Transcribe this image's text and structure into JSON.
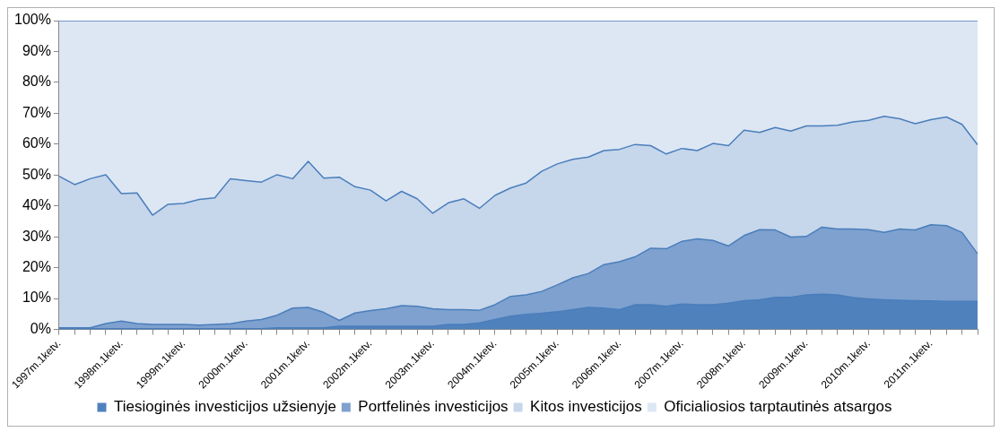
{
  "chart_data": {
    "type": "area",
    "stacked": true,
    "categories": [
      "1997m.1ketv.",
      null,
      null,
      null,
      "1998m.1ketv.",
      null,
      null,
      null,
      "1999m.1ketv.",
      null,
      null,
      null,
      "2000m.1ketv.",
      null,
      null,
      null,
      "2001m.1ketv.",
      null,
      null,
      null,
      "2002m.1ketv.",
      null,
      null,
      null,
      "2003m.1ketv.",
      null,
      null,
      null,
      "2004m.1ketv.",
      null,
      null,
      null,
      "2005m.1ketv.",
      null,
      null,
      null,
      "2006m.1ketv.",
      null,
      null,
      null,
      "2007m.1ketv.",
      null,
      null,
      null,
      "2008m.1ketv.",
      null,
      null,
      null,
      "2009m.1ketv.",
      null,
      null,
      null,
      "2010m.1ketv.",
      null,
      null,
      null,
      "2011m.1ketv.",
      null,
      null,
      null
    ],
    "series": [
      {
        "name": "Tiesioginės investicijos užsienyje",
        "color": "#4f81bd",
        "values": [
          0.2,
          0.2,
          0.2,
          0.2,
          0.2,
          0.2,
          0.2,
          0.2,
          0.2,
          0.2,
          0.2,
          0.2,
          0.2,
          0.2,
          0.5,
          0.5,
          0.5,
          0.5,
          1.0,
          1.0,
          1.0,
          1.0,
          1.0,
          1.0,
          1.0,
          1.6,
          1.6,
          2.1,
          3.2,
          4.3,
          4.9,
          5.2,
          5.7,
          6.4,
          7.1,
          6.9,
          6.4,
          8.0,
          8.0,
          7.5,
          8.2,
          8.0,
          8.0,
          8.5,
          9.3,
          9.6,
          10.4,
          10.4,
          11.2,
          11.4,
          11.2,
          10.3,
          9.9,
          9.6,
          9.4,
          9.3,
          9.2,
          9.1,
          9.1,
          9.1
        ]
      },
      {
        "name": "Portfelinės investicijos",
        "color": "#7ea1cf",
        "values": [
          0.3,
          0.3,
          0.3,
          1.7,
          2.5,
          1.7,
          1.4,
          1.4,
          1.4,
          1.2,
          1.4,
          1.6,
          2.5,
          3.0,
          4.1,
          6.4,
          6.6,
          5.0,
          1.9,
          4.3,
          5.1,
          5.7,
          6.7,
          6.5,
          5.7,
          4.8,
          4.8,
          4.1,
          4.8,
          6.4,
          6.3,
          7.1,
          8.7,
          10.3,
          11.0,
          14.1,
          15.5,
          15.5,
          18.3,
          18.6,
          20.3,
          21.3,
          20.8,
          18.5,
          21.1,
          22.7,
          21.8,
          19.5,
          18.9,
          21.7,
          21.3,
          22.2,
          22.4,
          21.8,
          23.1,
          22.9,
          24.7,
          24.5,
          22.3,
          15.4
        ]
      },
      {
        "name": "Kitos investicijos",
        "color": "#c6d6eb",
        "values": [
          49.1,
          46.4,
          48.3,
          48.2,
          41.3,
          42.3,
          35.4,
          38.9,
          39.2,
          40.7,
          41.0,
          47.0,
          45.5,
          44.5,
          45.5,
          41.9,
          47.3,
          43.5,
          46.4,
          40.9,
          39.0,
          34.9,
          37.0,
          34.8,
          30.9,
          34.6,
          35.9,
          33.0,
          35.4,
          35.1,
          36.2,
          38.9,
          39.2,
          38.4,
          37.7,
          36.9,
          36.4,
          36.4,
          33.2,
          30.7,
          30.1,
          28.6,
          31.4,
          32.5,
          34.1,
          31.5,
          33.2,
          34.3,
          35.8,
          32.8,
          33.6,
          34.7,
          35.4,
          37.6,
          35.7,
          34.4,
          34.0,
          35.2,
          35.0,
          35.3
        ]
      },
      {
        "name": "Oficialiosios tarptautinės atsargos",
        "color": "#dde7f4",
        "values": [
          50.4,
          53.1,
          51.2,
          49.9,
          56.0,
          55.8,
          63.0,
          59.5,
          59.2,
          57.9,
          57.4,
          51.2,
          51.8,
          52.3,
          49.9,
          51.2,
          45.6,
          51.0,
          50.7,
          53.8,
          54.9,
          58.4,
          55.3,
          57.7,
          62.4,
          59.0,
          57.7,
          60.8,
          56.6,
          54.2,
          52.6,
          48.8,
          46.4,
          44.9,
          44.2,
          42.1,
          41.7,
          40.1,
          40.5,
          43.2,
          41.4,
          42.1,
          39.8,
          40.5,
          35.5,
          36.2,
          34.6,
          35.8,
          34.1,
          34.1,
          33.9,
          32.8,
          32.3,
          31.0,
          31.8,
          33.4,
          32.1,
          31.2,
          33.6,
          40.2
        ]
      }
    ],
    "ylim": [
      0,
      100
    ],
    "yticks": [
      {
        "value": 0,
        "label": "0%"
      },
      {
        "value": 10,
        "label": "10%"
      },
      {
        "value": 20,
        "label": "20%"
      },
      {
        "value": 30,
        "label": "30%"
      },
      {
        "value": 40,
        "label": "40%"
      },
      {
        "value": 50,
        "label": "50%"
      },
      {
        "value": 60,
        "label": "60%"
      },
      {
        "value": 70,
        "label": "70%"
      },
      {
        "value": 80,
        "label": "80%"
      },
      {
        "value": 90,
        "label": "90%"
      },
      {
        "value": 100,
        "label": "100%"
      }
    ],
    "legend": "bottom"
  }
}
